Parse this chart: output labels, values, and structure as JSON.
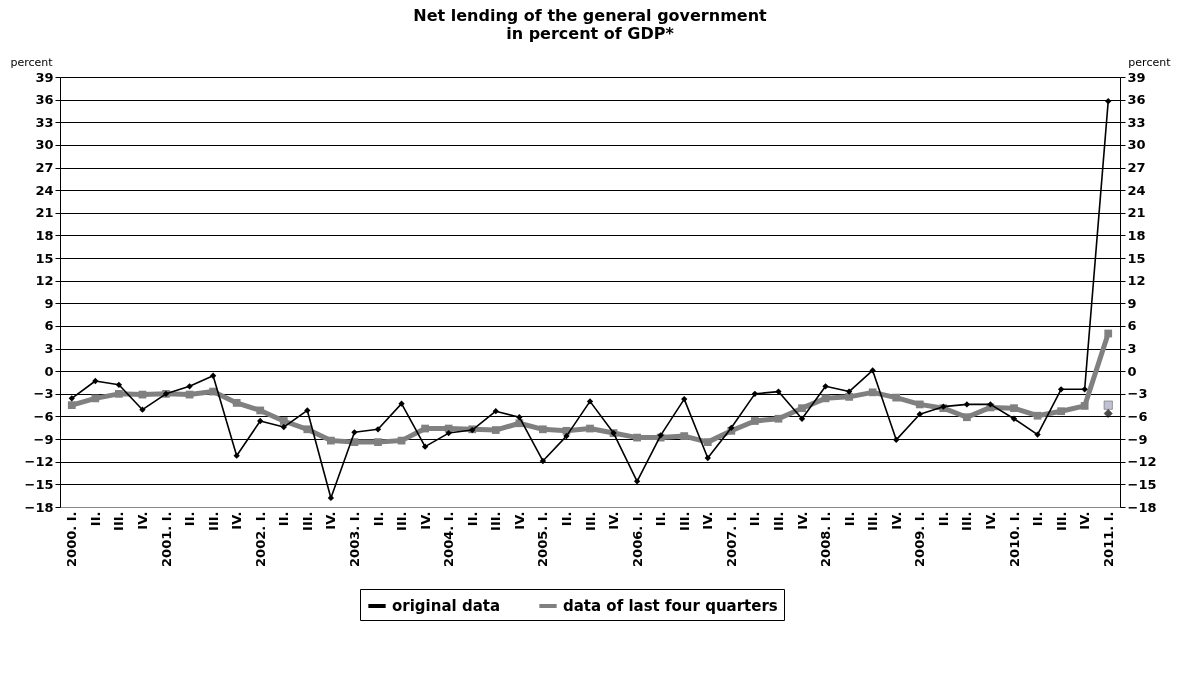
{
  "chart_data": {
    "type": "line",
    "title": "Net lending of the general government\nin percent of GDP*",
    "ylabel": "percent",
    "y2label": "percent",
    "categories": [
      "2000. I.",
      "II.",
      "III.",
      "IV.",
      "2001. I.",
      "II.",
      "III.",
      "IV.",
      "2002. I.",
      "II.",
      "III.",
      "IV.",
      "2003. I.",
      "II.",
      "III.",
      "IV.",
      "2004. I.",
      "II.",
      "III.",
      "IV.",
      "2005. I.",
      "II.",
      "III.",
      "IV.",
      "2006. I.",
      "II.",
      "III.",
      "IV.",
      "2007. I.",
      "II.",
      "III.",
      "IV.",
      "2008. I.",
      "II.",
      "III.",
      "IV.",
      "2009. I.",
      "II.",
      "III.",
      "IV.",
      "2010. I.",
      "II.",
      "III.",
      "IV.",
      "2011. I."
    ],
    "series": [
      {
        "name": "original data",
        "color": "#000000",
        "marker": "diamond",
        "values": [
          -3.6,
          -1.3,
          -1.8,
          -5.1,
          -3.0,
          -2.0,
          -0.6,
          -11.2,
          -6.6,
          -7.4,
          -5.2,
          -16.8,
          -8.1,
          -7.7,
          -4.3,
          -10.0,
          -8.2,
          -7.8,
          -5.3,
          -6.1,
          -11.9,
          -8.6,
          -4.0,
          -8.2,
          -14.6,
          -8.5,
          -3.7,
          -11.5,
          -7.5,
          -3.0,
          -2.7,
          -6.3,
          -2.0,
          -2.7,
          0.1,
          -9.1,
          -5.7,
          -4.7,
          -4.4,
          -4.4,
          -6.3,
          -8.4,
          -2.4,
          -2.4,
          35.8
        ]
      },
      {
        "name": "data of last four quarters",
        "color": "#808080",
        "marker": "square",
        "values": [
          -4.5,
          -3.6,
          -3.0,
          -3.1,
          -3.0,
          -3.1,
          -2.7,
          -4.2,
          -5.2,
          -6.6,
          -7.7,
          -9.2,
          -9.4,
          -9.4,
          -9.2,
          -7.6,
          -7.6,
          -7.7,
          -7.8,
          -6.9,
          -7.7,
          -7.9,
          -7.6,
          -8.2,
          -8.8,
          -8.8,
          -8.6,
          -9.4,
          -7.9,
          -6.6,
          -6.3,
          -4.9,
          -3.6,
          -3.4,
          -2.8,
          -3.5,
          -4.4,
          -4.9,
          -6.1,
          -4.8,
          -4.9,
          -5.9,
          -5.3,
          -4.6,
          5.0
        ]
      },
      {
        "type": "scatter",
        "color": "#a8a8c0",
        "marker": "square",
        "x": [
          "2011. I."
        ],
        "values": [
          -4.5
        ]
      },
      {
        "type": "scatter",
        "color": "#000000",
        "marker": "diamond",
        "x": [
          "2011. I."
        ],
        "values": [
          -5.6
        ]
      }
    ],
    "ylim": [
      -18,
      39
    ],
    "yticks": [
      -18,
      -15,
      -12,
      -9,
      -6,
      -3,
      0,
      3,
      6,
      9,
      12,
      15,
      18,
      21,
      24,
      27,
      30,
      33,
      36,
      39
    ],
    "y2lim": [
      -18,
      39
    ],
    "y2ticks": [
      -18,
      -15,
      -12,
      -9,
      -6,
      -3,
      0,
      3,
      6,
      9,
      12,
      15,
      18,
      21,
      24,
      27,
      30,
      33,
      36,
      39
    ],
    "grid": "y",
    "legend": "bottom"
  }
}
